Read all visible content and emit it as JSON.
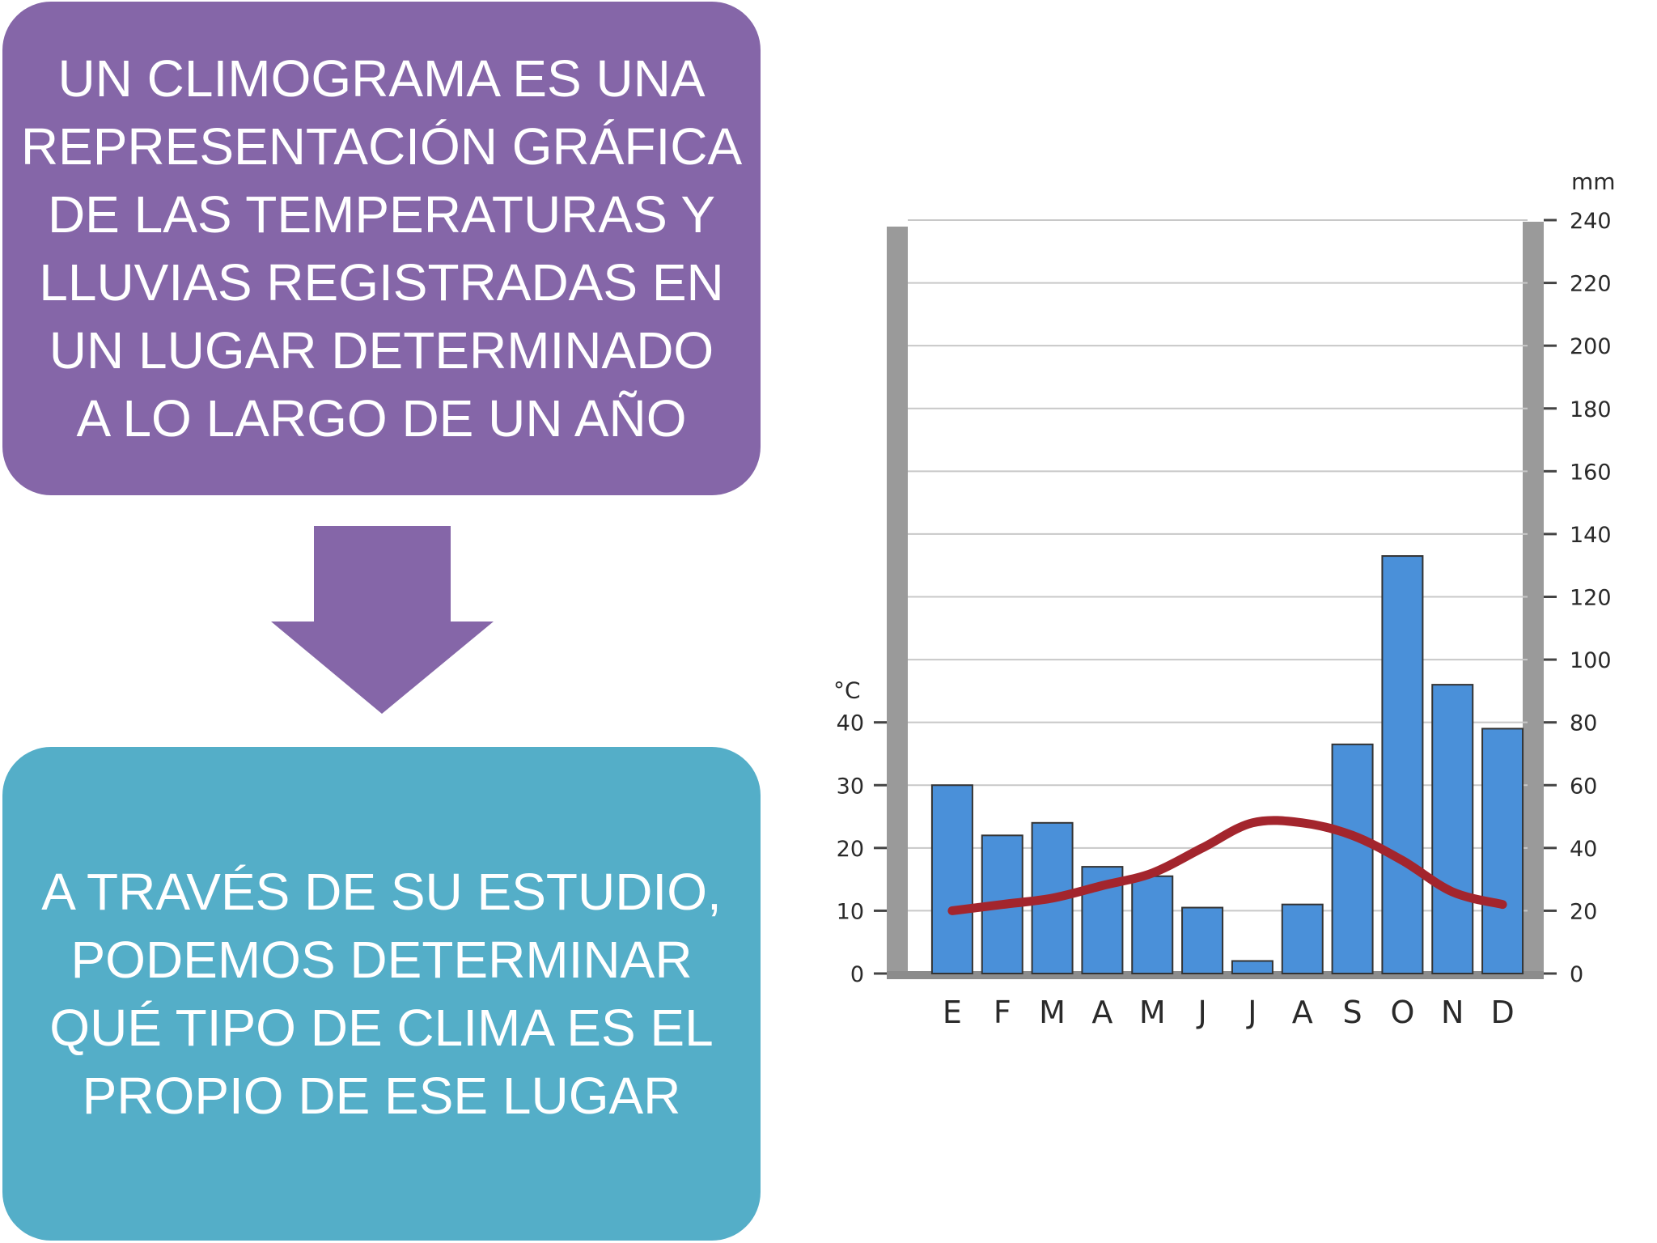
{
  "definition_box": {
    "lines": [
      "UN CLIMOGRAMA ES UNA",
      "REPRESENTACIÓN GRÁFICA",
      "DE LAS TEMPERATURAS Y",
      "LLUVIAS REGISTRADAS EN",
      "UN LUGAR DETERMINADO",
      "A LO LARGO DE UN AÑO"
    ],
    "color": "#8566a8"
  },
  "purpose_box": {
    "lines": [
      "A TRAVÉS DE SU ESTUDIO,",
      "PODEMOS DETERMINAR",
      "QUÉ TIPO DE CLIMA ES EL",
      "PROPIO DE ESE LUGAR"
    ],
    "color": "#54aec8"
  },
  "arrow": {
    "icon": "down-arrow-icon",
    "color": "#8566a8"
  },
  "chart_data": {
    "type": "bar",
    "categories": [
      "E",
      "F",
      "M",
      "A",
      "M",
      "J",
      "J",
      "A",
      "S",
      "O",
      "N",
      "D"
    ],
    "series": [
      {
        "kind": "bar",
        "axis": "right",
        "color": "#4a90d9",
        "values": [
          60,
          44,
          48,
          34,
          31,
          21,
          4,
          22,
          73,
          133,
          92,
          78
        ]
      },
      {
        "kind": "line",
        "axis": "left",
        "color": "#a3252d",
        "values": [
          10,
          11,
          12,
          14,
          16,
          20,
          24,
          24,
          22,
          18,
          13,
          11
        ]
      }
    ],
    "left_axis": {
      "unit": "°C",
      "ticks": [
        "0",
        "10",
        "20",
        "30",
        "40"
      ],
      "ylim": [
        0,
        40
      ]
    },
    "right_axis": {
      "unit": "mm",
      "ticks": [
        "0",
        "20",
        "40",
        "60",
        "80",
        "100",
        "120",
        "140",
        "160",
        "180",
        "200",
        "220",
        "240"
      ],
      "ylim": [
        0,
        240
      ]
    },
    "grid": true
  }
}
